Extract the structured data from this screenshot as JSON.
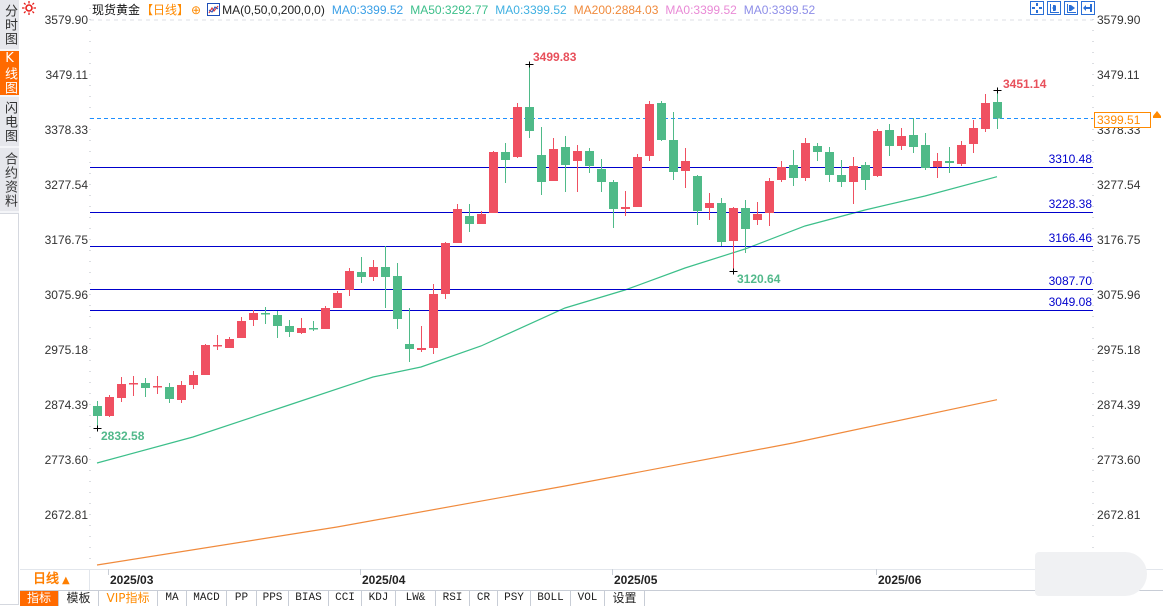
{
  "side_tabs": [
    {
      "label": "分时图",
      "active": false
    },
    {
      "label": "K线图",
      "active": true
    },
    {
      "label": "闪电图",
      "active": false
    },
    {
      "label": "合约资料",
      "active": false
    }
  ],
  "header": {
    "symbol": "现货黄金",
    "period": "【日线】",
    "add_symbol": "⊕",
    "indicator": "MA(0,50,0,200,0,0)",
    "ma_values": [
      {
        "label": "MA0:3399.52",
        "color": "#3a9fe6"
      },
      {
        "label": "MA50:3292.77",
        "color": "#3cbf8a"
      },
      {
        "label": "MA0:3399.52",
        "color": "#3fb0e2"
      },
      {
        "label": "MA200:2884.03",
        "color": "#f08a3c"
      },
      {
        "label": "MA0:3399.52",
        "color": "#e98ad6"
      },
      {
        "label": "MA0:3399.52",
        "color": "#8e8ee8"
      }
    ]
  },
  "tool_icons": [
    "crosshair-icon",
    "range-left-icon",
    "range-right-icon",
    "reset-view-icon"
  ],
  "period_selector": {
    "label": "日线",
    "arrow": "▲"
  },
  "indicator_tabs": [
    {
      "label": "指标",
      "active": true
    },
    {
      "label": "模板"
    },
    {
      "label": "VIP指标",
      "vip": true
    },
    {
      "label": "MA"
    },
    {
      "label": "MACD"
    },
    {
      "label": "PP"
    },
    {
      "label": "PPS"
    },
    {
      "label": "BIAS"
    },
    {
      "label": "CCI"
    },
    {
      "label": "KDJ"
    },
    {
      "label": "LW&"
    },
    {
      "label": "RSI"
    },
    {
      "label": "CR"
    },
    {
      "label": "PSY"
    },
    {
      "label": "BOLL"
    },
    {
      "label": "VOL"
    },
    {
      "label": "设置"
    }
  ],
  "colors": {
    "up": "#ef5061",
    "down": "#4fba88",
    "level_line": "#0000cc",
    "current_price_line": "#1e8fff",
    "accent": "#ff6a00",
    "ma50": "#3cbf8a",
    "ma200": "#f08a3c"
  },
  "chart_data": {
    "type": "candlestick",
    "title": "现货黄金【日线】",
    "xlabel": "",
    "ylabel": "",
    "y_ticks": [
      "3579.90",
      "3479.11",
      "3378.33",
      "3277.54",
      "3176.75",
      "3075.96",
      "2975.18",
      "2874.39",
      "2773.60",
      "2672.81"
    ],
    "ylim": [
      2672.81,
      3579.9
    ],
    "x_ticks": [
      {
        "label": "2025/03",
        "index": 1
      },
      {
        "label": "2025/04",
        "index": 22
      },
      {
        "label": "2025/05",
        "index": 43
      },
      {
        "label": "2025/06",
        "index": 65
      }
    ],
    "candle_format": [
      "open",
      "high",
      "low",
      "close"
    ],
    "candles": [
      [
        2872.55,
        2881.72,
        2832.58,
        2854.23
      ],
      [
        2854.23,
        2892.71,
        2852.4,
        2889.05
      ],
      [
        2887.21,
        2925.7,
        2879.88,
        2912.87
      ],
      [
        2913.79,
        2927.53,
        2890.88,
        2914.7
      ],
      [
        2914.7,
        2923.86,
        2889.05,
        2905.54
      ],
      [
        2907.37,
        2927.53,
        2894.54,
        2909.2
      ],
      [
        2907.37,
        2914.7,
        2878.05,
        2885.38
      ],
      [
        2883.55,
        2918.37,
        2878.05,
        2911.04
      ],
      [
        2911.04,
        2936.69,
        2903.71,
        2929.36
      ],
      [
        2929.36,
        2986.17,
        2929.36,
        2984.34
      ],
      [
        2983.4,
        3002.66,
        2975.17,
        2984.34
      ],
      [
        2978.84,
        2999.0,
        2978.84,
        2995.33
      ],
      [
        2997.16,
        3035.65,
        2997.16,
        3028.32
      ],
      [
        3030.15,
        3048.47,
        3019.15,
        3042.98
      ],
      [
        3042.98,
        3053.97,
        3022.82,
        3041.15
      ],
      [
        3039.31,
        3046.63,
        2997.16,
        3019.15
      ],
      [
        3019.15,
        3030.15,
        2998.99,
        3008.16
      ],
      [
        3006.33,
        3033.82,
        3004.5,
        3015.49
      ],
      [
        3015.49,
        3028.32,
        3009.99,
        3013.66
      ],
      [
        3013.66,
        3055.81,
        3013.66,
        3052.14
      ],
      [
        3052.14,
        3083.3,
        3052.14,
        3079.63
      ],
      [
        3085.12,
        3125.44,
        3074.13,
        3119.94
      ],
      [
        3118.11,
        3145.6,
        3097.95,
        3108.95
      ],
      [
        3108.95,
        3140.1,
        3101.62,
        3127.27
      ],
      [
        3127.27,
        3165.75,
        3052.14,
        3108.95
      ],
      [
        3110.78,
        3134.6,
        3013.66,
        3031.98
      ],
      [
        2986.17,
        3052.14,
        2953.18,
        2977.0
      ],
      [
        2975.17,
        3019.15,
        2971.5,
        2978.84
      ],
      [
        2978.84,
        3096.12,
        2967.85,
        3077.8
      ],
      [
        3077.8,
        3173.09,
        3068.62,
        3171.25
      ],
      [
        3171.25,
        3242.72,
        3171.25,
        3233.56
      ],
      [
        3220.73,
        3242.72,
        3191.41,
        3206.07
      ],
      [
        3206.07,
        3229.9,
        3206.07,
        3224.4
      ],
      [
        3226.23,
        3339.84,
        3226.23,
        3338.01
      ],
      [
        3338.01,
        3354.5,
        3281.2,
        3323.35
      ],
      [
        3328.85,
        3427.8,
        3327.02,
        3420.47
      ],
      [
        3420.47,
        3499.83,
        3363.66,
        3376.49
      ],
      [
        3332.51,
        3383.82,
        3259.21,
        3283.03
      ],
      [
        3284.87,
        3363.66,
        3284.87,
        3343.51
      ],
      [
        3347.17,
        3367.33,
        3264.71,
        3314.19
      ],
      [
        3321.52,
        3350.84,
        3264.71,
        3339.84
      ],
      [
        3339.84,
        3345.34,
        3299.53,
        3312.36
      ],
      [
        3306.86,
        3325.18,
        3264.71,
        3283.03
      ],
      [
        3283.03,
        3286.7,
        3198.74,
        3233.56
      ],
      [
        3233.56,
        3266.54,
        3220.73,
        3237.22
      ],
      [
        3237.22,
        3334.35,
        3237.22,
        3328.85
      ],
      [
        3330.68,
        3431.47,
        3321.52,
        3425.97
      ],
      [
        3427.8,
        3431.47,
        3358.2,
        3360.0
      ],
      [
        3360.0,
        3411.31,
        3286.7,
        3301.36
      ],
      [
        3303.19,
        3345.34,
        3272.04,
        3321.52
      ],
      [
        3294.03,
        3295.86,
        3204.24,
        3229.9
      ],
      [
        3235.39,
        3262.88,
        3213.4,
        3244.55
      ],
      [
        3244.55,
        3253.72,
        3165.76,
        3173.09
      ],
      [
        3174.92,
        3237.22,
        3120.64,
        3235.39
      ],
      [
        3235.39,
        3250.05,
        3152.93,
        3196.91
      ],
      [
        3213.4,
        3246.39,
        3204.24,
        3224.4
      ],
      [
        3226.23,
        3290.37,
        3202.41,
        3284.87
      ],
      [
        3286.7,
        3321.52,
        3283.03,
        3310.52
      ],
      [
        3314.19,
        3341.68,
        3275.7,
        3290.37
      ],
      [
        3290.37,
        3363.66,
        3284.87,
        3354.5
      ],
      [
        3349.0,
        3354.5,
        3321.52,
        3338.01
      ],
      [
        3338.01,
        3347.17,
        3283.03,
        3295.86
      ],
      [
        3295.86,
        3323.35,
        3273.87,
        3283.03
      ],
      [
        3283.03,
        3328.85,
        3242.72,
        3312.36
      ],
      [
        3314.19,
        3319.69,
        3268.38,
        3286.7
      ],
      [
        3294.03,
        3380.16,
        3292.2,
        3376.49
      ],
      [
        3378.33,
        3389.32,
        3330.68,
        3349.0
      ],
      [
        3349.0,
        3382.0,
        3341.68,
        3367.33
      ],
      [
        3369.16,
        3400.32,
        3336.18,
        3347.17
      ],
      [
        3350.84,
        3372.82,
        3305.03,
        3308.69
      ],
      [
        3310.52,
        3336.18,
        3290.37,
        3321.52
      ],
      [
        3321.52,
        3347.17,
        3299.53,
        3317.85
      ],
      [
        3316.02,
        3358.17,
        3312.36,
        3350.84
      ],
      [
        3352.67,
        3396.65,
        3336.18,
        3381.99
      ],
      [
        3380.16,
        3444.3,
        3374.66,
        3427.8
      ],
      [
        3429.64,
        3451.14,
        3380.16,
        3399.51
      ]
    ],
    "series": [
      {
        "name": "MA50",
        "value": "3292.77",
        "color": "#3cbf8a",
        "points": [
          [
            0,
            2768.1
          ],
          [
            8,
            2815.75
          ],
          [
            16,
            2874.39
          ],
          [
            23,
            2925.7
          ],
          [
            27,
            2944.02
          ],
          [
            32,
            2982.5
          ],
          [
            39,
            3052.14
          ],
          [
            44,
            3085.12
          ],
          [
            49,
            3125.44
          ],
          [
            54,
            3160.26
          ],
          [
            59,
            3202.41
          ],
          [
            64,
            3231.73
          ],
          [
            69,
            3257.38
          ],
          [
            75,
            3292.77
          ]
        ]
      },
      {
        "name": "MA200",
        "value": "2884.03",
        "color": "#f08a3c",
        "points": [
          [
            0,
            2581.19
          ],
          [
            20,
            2650.82
          ],
          [
            39,
            2725.95
          ],
          [
            58,
            2804.75
          ],
          [
            75,
            2884.03
          ]
        ]
      }
    ],
    "levels": [
      "3310.48",
      "3228.38",
      "3166.46",
      "3087.70",
      "3049.08"
    ],
    "current_price": "3399.51",
    "annotations": [
      {
        "label": "3499.83",
        "index": 36,
        "price": 3499.83,
        "type": "high"
      },
      {
        "label": "3451.14",
        "index": 75,
        "price": 3451.14,
        "type": "high"
      },
      {
        "label": "3120.64",
        "index": 53,
        "price": 3120.64,
        "type": "low"
      },
      {
        "label": "2832.58",
        "index": 0,
        "price": 2832.58,
        "type": "low"
      }
    ],
    "grid": false,
    "legend_position": "top"
  }
}
